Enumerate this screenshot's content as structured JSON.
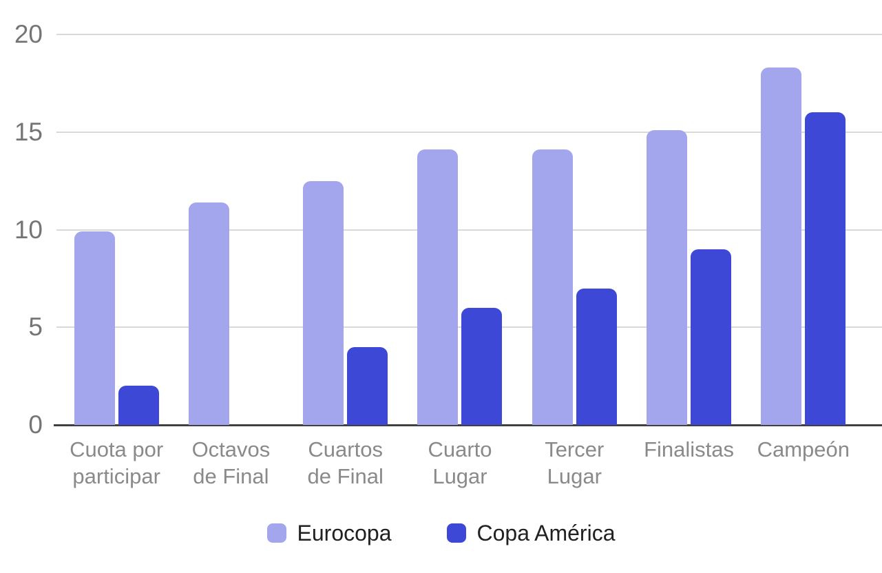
{
  "chart_data": {
    "type": "bar",
    "title": "",
    "categories": [
      "Cuota por participar",
      "Octavos de Final",
      "Cuartos de Final",
      "Cuarto Lugar",
      "Tercer Lugar",
      "Finalistas",
      "Campeón"
    ],
    "series": [
      {
        "name": "Eurocopa",
        "color": "#A3A6EC",
        "values": [
          9.9,
          11.4,
          12.5,
          14.1,
          14.1,
          15.1,
          18.3
        ]
      },
      {
        "name": "Copa América",
        "color": "#3D48D6",
        "values": [
          2,
          0,
          4,
          6,
          7,
          9,
          16
        ]
      }
    ],
    "ylim": [
      0,
      20
    ],
    "yticks": [
      0,
      5,
      10,
      15,
      20
    ],
    "y_tick_labels": [
      "0",
      "5",
      "10",
      "15",
      "20"
    ],
    "xlabel": "",
    "ylabel": "",
    "grid": true,
    "legend_position": "bottom"
  },
  "legend": {
    "items": [
      {
        "label": "Eurocopa",
        "color": "#A3A6EC"
      },
      {
        "label": "Copa América",
        "color": "#3D48D6"
      }
    ]
  },
  "colors": {
    "background": "#FFFFFF",
    "gridline": "#D9D9D9",
    "axis_line": "#404040",
    "y_tick_text": "#757575",
    "x_label_text": "#8A8A8A",
    "legend_text": "#212121"
  }
}
